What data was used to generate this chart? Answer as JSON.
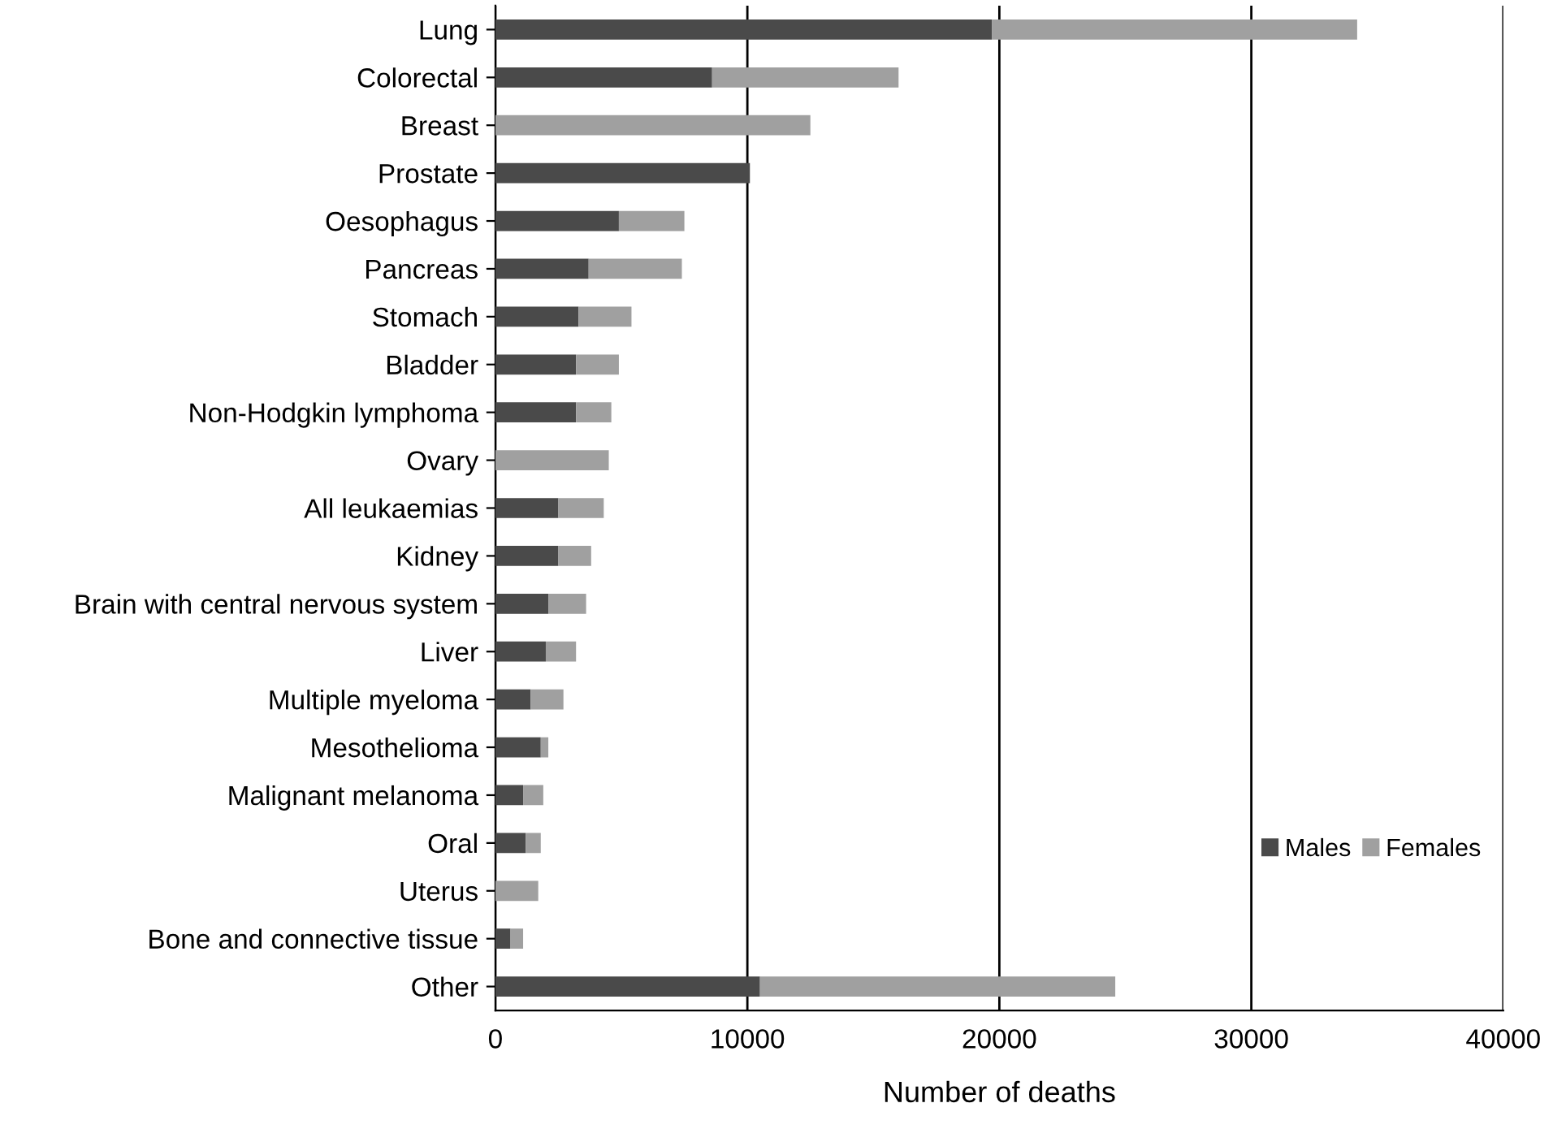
{
  "chart_data": {
    "type": "bar",
    "orientation": "horizontal",
    "stacked": true,
    "xlabel": "Number of deaths",
    "categories": [
      "Lung",
      "Colorectal",
      "Breast",
      "Prostate",
      "Oesophagus",
      "Pancreas",
      "Stomach",
      "Bladder",
      "Non-Hodgkin lymphoma",
      "Ovary",
      "All leukaemias",
      "Kidney",
      "Brain with central nervous system",
      "Liver",
      "Multiple myeloma",
      "Mesothelioma",
      "Malignant melanoma",
      "Oral",
      "Uterus",
      "Bone and connective tissue",
      "Other"
    ],
    "series": [
      {
        "name": "Males",
        "color": "#4a4a4a",
        "values": [
          19700,
          8600,
          0,
          10100,
          4900,
          3700,
          3300,
          3200,
          3200,
          0,
          2500,
          2500,
          2100,
          2000,
          1400,
          1800,
          1100,
          1200,
          0,
          600,
          10500
        ]
      },
      {
        "name": "Females",
        "color": "#a0a0a0",
        "values": [
          14500,
          7400,
          12500,
          0,
          2600,
          3700,
          2100,
          1700,
          1400,
          4500,
          1800,
          1300,
          1500,
          1200,
          1300,
          300,
          800,
          600,
          1700,
          500,
          14100
        ]
      }
    ],
    "xlim": [
      0,
      40000
    ],
    "xticks": [
      0,
      10000,
      20000,
      30000,
      40000
    ],
    "grid": "x",
    "legend": "right"
  }
}
